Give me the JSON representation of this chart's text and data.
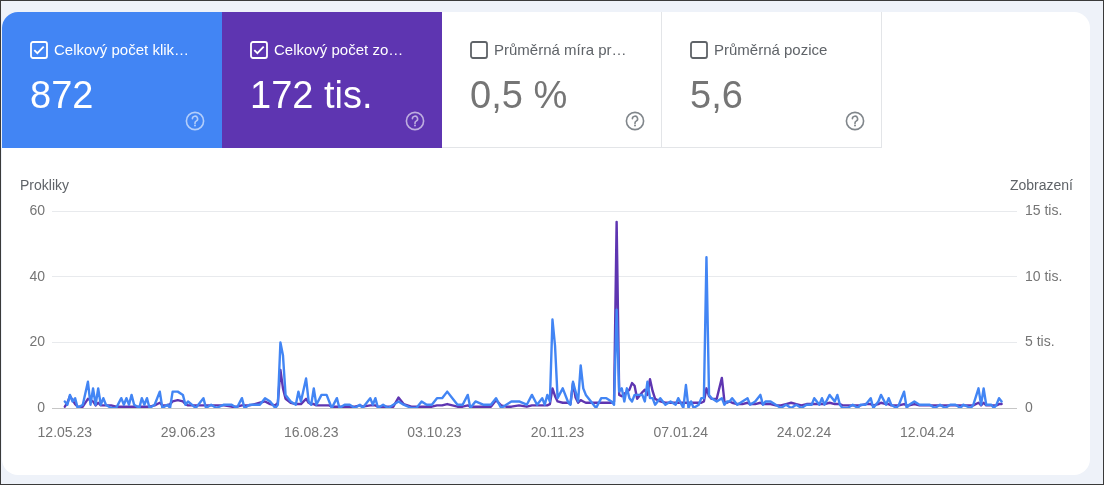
{
  "chart_data": [
    {
      "type": "other",
      "title": "Celkový počet klik…",
      "annotations": [
        "872"
      ],
      "color": "#4285f4"
    },
    {
      "type": "other",
      "title": "Celkový počet zo…",
      "annotations": [
        "172 tis."
      ],
      "color": "#5e35b1"
    },
    {
      "type": "other",
      "title": "Průměrná míra pr…",
      "annotations": [
        "0,5 %"
      ]
    },
    {
      "type": "other",
      "title": "Průměrná pozice",
      "annotations": [
        "5,6"
      ]
    },
    {
      "type": "line",
      "ylabel": "Prokliky",
      "y2label": "Zobrazení",
      "grid": "y",
      "marker": "none",
      "xlim": [
        "2023-05-07",
        "2024-05-17"
      ],
      "xticks": [
        {
          "value": "2023-05-12",
          "label": "12.05.23"
        },
        {
          "value": "2023-06-29",
          "label": "29.06.23"
        },
        {
          "value": "2023-08-16",
          "label": "16.08.23"
        },
        {
          "value": "2023-10-03",
          "label": "03.10.23"
        },
        {
          "value": "2023-11-20",
          "label": "20.11.23"
        },
        {
          "value": "2024-01-07",
          "label": "07.01.24"
        },
        {
          "value": "2024-02-24",
          "label": "24.02.24"
        },
        {
          "value": "2024-04-12",
          "label": "12.04.24"
        }
      ],
      "ylim": [
        0,
        60
      ],
      "yticks": [
        0,
        20,
        40,
        60
      ],
      "y2lim": [
        0,
        15
      ],
      "y2ticks": [
        0,
        {
          "value": 5,
          "label": "5 tis."
        },
        {
          "value": 10,
          "label": "10 tis."
        },
        {
          "value": 15,
          "label": "15 tis."
        }
      ],
      "x": [
        "2023-05-12",
        "2023-05-13",
        "2023-05-14",
        "2023-05-15",
        "2023-05-16",
        "2023-05-17",
        "2023-05-19",
        "2023-05-21",
        "2023-05-22",
        "2023-05-23",
        "2023-05-24",
        "2023-05-25",
        "2023-05-26",
        "2023-05-27",
        "2023-05-28",
        "2023-05-30",
        "2023-06-01",
        "2023-06-03",
        "2023-06-04",
        "2023-06-05",
        "2023-06-06",
        "2023-06-07",
        "2023-06-08",
        "2023-06-10",
        "2023-06-11",
        "2023-06-12",
        "2023-06-13",
        "2023-06-14",
        "2023-06-16",
        "2023-06-18",
        "2023-06-19",
        "2023-06-21",
        "2023-06-22",
        "2023-06-23",
        "2023-06-25",
        "2023-06-27",
        "2023-06-28",
        "2023-06-29",
        "2023-07-02",
        "2023-07-05",
        "2023-07-06",
        "2023-07-08",
        "2023-07-10",
        "2023-07-13",
        "2023-07-16",
        "2023-07-18",
        "2023-07-20",
        "2023-07-21",
        "2023-07-23",
        "2023-07-25",
        "2023-07-27",
        "2023-07-29",
        "2023-07-31",
        "2023-08-02",
        "2023-08-03",
        "2023-08-04",
        "2023-08-05",
        "2023-08-06",
        "2023-08-08",
        "2023-08-10",
        "2023-08-11",
        "2023-08-12",
        "2023-08-14",
        "2023-08-15",
        "2023-08-16",
        "2023-08-17",
        "2023-08-18",
        "2023-08-20",
        "2023-08-22",
        "2023-08-23",
        "2023-08-24",
        "2023-08-26",
        "2023-08-27",
        "2023-08-29",
        "2023-08-31",
        "2023-09-02",
        "2023-09-04",
        "2023-09-05",
        "2023-09-08",
        "2023-09-09",
        "2023-09-10",
        "2023-09-11",
        "2023-09-13",
        "2023-09-15",
        "2023-09-17",
        "2023-09-19",
        "2023-09-21",
        "2023-09-24",
        "2023-09-26",
        "2023-09-28",
        "2023-09-30",
        "2023-10-02",
        "2023-10-04",
        "2023-10-06",
        "2023-10-08",
        "2023-10-10",
        "2023-10-12",
        "2023-10-14",
        "2023-10-16",
        "2023-10-17",
        "2023-10-19",
        "2023-10-22",
        "2023-10-25",
        "2023-10-27",
        "2023-10-29",
        "2023-10-31",
        "2023-11-02",
        "2023-11-05",
        "2023-11-08",
        "2023-11-10",
        "2023-11-12",
        "2023-11-14",
        "2023-11-15",
        "2023-11-16",
        "2023-11-17",
        "2023-11-18",
        "2023-11-19",
        "2023-11-20",
        "2023-11-22",
        "2023-11-24",
        "2023-11-25",
        "2023-11-26",
        "2023-11-27",
        "2023-11-28",
        "2023-11-29",
        "2023-11-30",
        "2023-12-01",
        "2023-12-03",
        "2023-12-05",
        "2023-12-07",
        "2023-12-09",
        "2023-12-11",
        "2023-12-12",
        "2023-12-13",
        "2023-12-14",
        "2023-12-15",
        "2023-12-16",
        "2023-12-17",
        "2023-12-18",
        "2023-12-19",
        "2023-12-20",
        "2023-12-21",
        "2023-12-23",
        "2023-12-24",
        "2023-12-25",
        "2023-12-26",
        "2023-12-27",
        "2023-12-28",
        "2023-12-30",
        "2024-01-01",
        "2024-01-03",
        "2024-01-05",
        "2024-01-06",
        "2024-01-08",
        "2024-01-09",
        "2024-01-10",
        "2024-01-11",
        "2024-01-12",
        "2024-01-14",
        "2024-01-15",
        "2024-01-16",
        "2024-01-17",
        "2024-01-18",
        "2024-01-19",
        "2024-01-21",
        "2024-01-23",
        "2024-01-24",
        "2024-01-25",
        "2024-01-26",
        "2024-01-27",
        "2024-01-29",
        "2024-01-31",
        "2024-02-02",
        "2024-02-03",
        "2024-02-05",
        "2024-02-07",
        "2024-02-08",
        "2024-02-09",
        "2024-02-11",
        "2024-02-13",
        "2024-02-15",
        "2024-02-17",
        "2024-02-19",
        "2024-02-21",
        "2024-02-23",
        "2024-02-25",
        "2024-02-27",
        "2024-02-28",
        "2024-03-01",
        "2024-03-02",
        "2024-03-03",
        "2024-03-05",
        "2024-03-07",
        "2024-03-08",
        "2024-03-09",
        "2024-03-10",
        "2024-03-12",
        "2024-03-14",
        "2024-03-16",
        "2024-03-17",
        "2024-03-19",
        "2024-03-21",
        "2024-03-22",
        "2024-03-24",
        "2024-03-25",
        "2024-03-27",
        "2024-03-28",
        "2024-03-29",
        "2024-03-31",
        "2024-04-01",
        "2024-04-03",
        "2024-04-04",
        "2024-04-05",
        "2024-04-07",
        "2024-04-09",
        "2024-04-11",
        "2024-04-13",
        "2024-04-15",
        "2024-04-17",
        "2024-04-19",
        "2024-04-21",
        "2024-04-23",
        "2024-04-25",
        "2024-04-26",
        "2024-04-29",
        "2024-04-30",
        "2024-05-02",
        "2024-05-03",
        "2024-05-04",
        "2024-05-05",
        "2024-05-07",
        "2024-05-08",
        "2024-05-09",
        "2024-05-10",
        "2024-05-11"
      ],
      "series": [
        {
          "color": "#4285f4",
          "values": [
            2,
            1,
            4,
            2,
            3,
            0,
            1,
            8,
            1,
            6,
            1,
            6,
            1,
            3,
            1,
            0,
            0,
            3,
            1,
            3,
            1,
            4,
            1,
            0,
            3,
            1,
            3,
            0,
            1,
            5,
            0,
            1,
            0,
            5,
            5,
            4,
            1,
            2,
            0,
            3,
            0,
            1,
            0,
            1,
            1,
            0,
            3,
            0,
            1,
            1,
            1,
            3,
            2,
            0,
            1,
            20,
            16,
            4,
            2,
            1,
            5,
            2,
            9,
            2,
            1,
            6,
            1,
            4,
            4,
            2,
            0,
            3,
            0,
            1,
            1,
            0,
            1,
            0,
            3,
            1,
            3,
            0,
            1,
            0,
            1,
            2,
            1,
            0,
            0,
            2,
            1,
            1,
            3,
            3,
            5,
            3,
            1,
            1,
            4,
            0,
            2,
            1,
            1,
            3,
            0,
            1,
            2,
            2,
            1,
            4,
            1,
            3,
            1,
            4,
            2,
            27,
            19,
            3,
            6,
            2,
            1,
            8,
            5,
            2,
            13,
            6,
            4,
            2,
            0,
            3,
            3,
            2,
            1,
            30,
            5,
            6,
            2,
            6,
            3,
            2,
            4,
            4,
            4,
            2,
            8,
            3,
            3,
            1,
            3,
            1,
            2,
            1,
            3,
            0,
            7,
            0,
            2,
            0,
            1,
            3,
            3,
            46,
            4,
            3,
            2,
            3,
            1,
            2,
            2,
            3,
            1,
            2,
            3,
            1,
            2,
            4,
            1,
            2,
            2,
            1,
            0,
            1,
            0,
            1,
            0,
            1,
            1,
            3,
            1,
            3,
            1,
            4,
            2,
            4,
            1,
            0,
            0,
            1,
            0,
            1,
            1,
            3,
            0,
            2,
            4,
            1,
            3,
            1,
            0,
            1,
            5,
            0,
            1,
            2,
            1,
            1,
            1,
            0,
            1,
            0,
            1,
            1,
            0,
            1,
            0,
            1,
            6,
            1,
            6,
            1,
            1,
            0,
            1,
            3,
            2
          ]
        },
        {
          "color": "#5e35b1",
          "axis": "y2",
          "values": [
            0.1,
            0.4,
            0.9,
            0.6,
            0.3,
            0.1,
            0.1,
            0.7,
            0.6,
            0.5,
            0.2,
            0.4,
            0.2,
            0.2,
            0.2,
            0.2,
            0.1,
            0.1,
            0.1,
            0.1,
            0.1,
            0.1,
            0.1,
            0.1,
            0.1,
            0.1,
            0.1,
            0.1,
            0.2,
            0.4,
            0.2,
            0.2,
            0.3,
            0.5,
            0.6,
            0.5,
            0.3,
            0.2,
            0.2,
            0.2,
            0.2,
            0.2,
            0.2,
            0.2,
            0.1,
            0.1,
            0.2,
            0.2,
            0.2,
            0.3,
            0.4,
            0.5,
            0.3,
            0.2,
            0.4,
            2.9,
            1.5,
            0.7,
            0.4,
            0.3,
            0.3,
            0.3,
            0.7,
            0.4,
            0.3,
            0.3,
            0.2,
            0.2,
            0.2,
            0.2,
            0.1,
            0.1,
            0.1,
            0.1,
            0.1,
            0.1,
            0.2,
            0.1,
            0.2,
            0.2,
            0.2,
            0.1,
            0.1,
            0.1,
            0.1,
            0.8,
            0.3,
            0.1,
            0.1,
            0.1,
            0.1,
            0.1,
            0.2,
            0.2,
            0.3,
            0.2,
            0.1,
            0.1,
            0.2,
            0.1,
            0.1,
            0.1,
            0.1,
            0.6,
            0.2,
            0.1,
            0.1,
            0.2,
            0.1,
            0.2,
            0.2,
            0.2,
            0.2,
            0.2,
            0.3,
            1.5,
            0.9,
            0.5,
            0.4,
            0.4,
            0.3,
            1.9,
            0.8,
            0.4,
            0.6,
            0.5,
            0.4,
            0.4,
            0.4,
            0.4,
            0.4,
            0.4,
            0.5,
            14.2,
            1,
            0.9,
            1.1,
            1.2,
            1.4,
            1.9,
            1.7,
            0.7,
            1.2,
            1.4,
            1,
            2.2,
            1.3,
            0.7,
            0.5,
            0.4,
            0.4,
            0.4,
            0.4,
            0.4,
            0.4,
            0.4,
            0.4,
            0.4,
            0.4,
            0.4,
            0.5,
            1.5,
            0.9,
            0.7,
            0.7,
            2.3,
            0.5,
            0.4,
            0.5,
            0.4,
            0.3,
            0.3,
            0.4,
            0.3,
            0.3,
            0.4,
            0.3,
            0.3,
            0.3,
            0.2,
            0.2,
            0.3,
            0.4,
            0.3,
            0.2,
            0.3,
            0.3,
            0.3,
            0.3,
            0.3,
            0.3,
            0.4,
            0.3,
            0.3,
            0.3,
            0.2,
            0.2,
            0.2,
            0.2,
            0.2,
            0.3,
            0.3,
            0.2,
            0.3,
            0.4,
            0.3,
            0.3,
            0.2,
            0.2,
            0.2,
            0.3,
            0.2,
            0.2,
            0.3,
            0.2,
            0.2,
            0.2,
            0.2,
            0.2,
            0.2,
            0.2,
            0.2,
            0.2,
            0.2,
            0.2,
            0.2,
            0.4,
            0.2,
            0.4,
            0.2,
            0.2,
            0.2,
            0.2,
            0.3,
            0.3
          ]
        }
      ]
    }
  ]
}
